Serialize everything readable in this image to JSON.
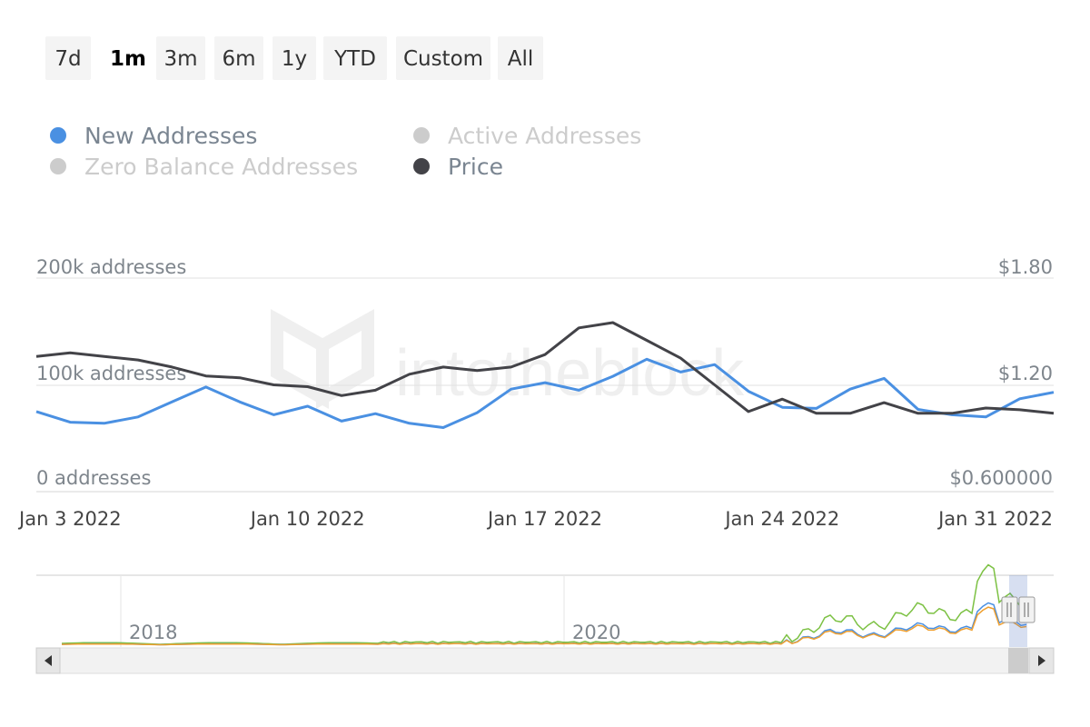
{
  "range_buttons": [
    {
      "label": "7d",
      "active": false
    },
    {
      "label": "1m",
      "active": true
    },
    {
      "label": "3m",
      "active": false
    },
    {
      "label": "6m",
      "active": false
    },
    {
      "label": "1y",
      "active": false
    },
    {
      "label": "YTD",
      "active": false
    },
    {
      "label": "Custom",
      "active": false
    },
    {
      "label": "All",
      "active": false
    }
  ],
  "legend": [
    {
      "label": "New Addresses",
      "color": "#4a90e2",
      "enabled": true
    },
    {
      "label": "Active Addresses",
      "color": "#cccccc",
      "enabled": false
    },
    {
      "label": "Zero Balance Addresses",
      "color": "#cccccc",
      "enabled": false
    },
    {
      "label": "Price",
      "color": "#434348",
      "enabled": true
    }
  ],
  "watermark": "intotheblock",
  "chart_data": {
    "type": "line",
    "x_labels": [
      "Jan 3 2022",
      "Jan 10 2022",
      "Jan 17 2022",
      "Jan 24 2022",
      "Jan 31 2022"
    ],
    "left_axis": {
      "ticks": [
        "200k addresses",
        "100k addresses",
        "0 addresses"
      ],
      "range": [
        0,
        200000
      ]
    },
    "right_axis": {
      "ticks": [
        "$1.80",
        "$1.20",
        "$0.600000"
      ],
      "range": [
        0.6,
        1.8
      ]
    },
    "series": [
      {
        "name": "New Addresses",
        "color": "#4a90e2",
        "axis": "left",
        "dates": [
          "2022-01-02",
          "2022-01-03",
          "2022-01-04",
          "2022-01-05",
          "2022-01-06",
          "2022-01-07",
          "2022-01-08",
          "2022-01-09",
          "2022-01-10",
          "2022-01-11",
          "2022-01-12",
          "2022-01-13",
          "2022-01-14",
          "2022-01-15",
          "2022-01-16",
          "2022-01-17",
          "2022-01-18",
          "2022-01-19",
          "2022-01-20",
          "2022-01-21",
          "2022-01-22",
          "2022-01-23",
          "2022-01-24",
          "2022-01-25",
          "2022-01-26",
          "2022-01-27",
          "2022-01-28",
          "2022-01-29",
          "2022-01-30",
          "2022-01-31",
          "2022-02-01"
        ],
        "values": [
          75000,
          65000,
          64000,
          70000,
          84000,
          98000,
          84000,
          72000,
          80000,
          66000,
          73000,
          64000,
          60000,
          74000,
          96000,
          102000,
          95000,
          108000,
          124000,
          112000,
          119000,
          94000,
          79000,
          78000,
          96000,
          106000,
          77000,
          72000,
          70000,
          87000,
          93000
        ]
      },
      {
        "name": "Price",
        "color": "#434348",
        "axis": "right",
        "dates": [
          "2022-01-02",
          "2022-01-03",
          "2022-01-04",
          "2022-01-05",
          "2022-01-06",
          "2022-01-07",
          "2022-01-08",
          "2022-01-09",
          "2022-01-10",
          "2022-01-11",
          "2022-01-12",
          "2022-01-13",
          "2022-01-14",
          "2022-01-15",
          "2022-01-16",
          "2022-01-17",
          "2022-01-18",
          "2022-01-19",
          "2022-01-20",
          "2022-01-21",
          "2022-01-22",
          "2022-01-23",
          "2022-01-24",
          "2022-01-25",
          "2022-01-26",
          "2022-01-27",
          "2022-01-28",
          "2022-01-29",
          "2022-01-30",
          "2022-01-31",
          "2022-02-01"
        ],
        "values": [
          1.36,
          1.38,
          1.36,
          1.34,
          1.3,
          1.25,
          1.24,
          1.2,
          1.19,
          1.14,
          1.17,
          1.26,
          1.3,
          1.28,
          1.3,
          1.37,
          1.52,
          1.55,
          1.45,
          1.35,
          1.2,
          1.05,
          1.12,
          1.04,
          1.04,
          1.1,
          1.04,
          1.04,
          1.07,
          1.06,
          1.04
        ]
      }
    ],
    "navigator": {
      "labels": [
        "2018",
        "2020"
      ],
      "colors": [
        "#7cc143",
        "#4a90e2",
        "#f0a030"
      ]
    }
  }
}
